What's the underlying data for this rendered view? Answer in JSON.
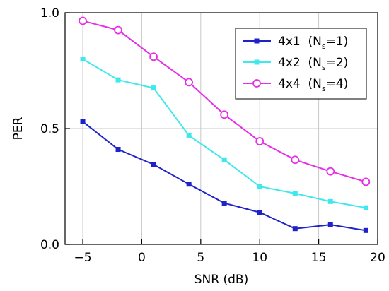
{
  "chart_data": {
    "type": "line",
    "xlabel": "SNR (dB)",
    "ylabel": "PER",
    "xlim": [
      -6.5,
      20
    ],
    "ylim": [
      0,
      1.0
    ],
    "x_ticks": [
      -5,
      0,
      5,
      10,
      15,
      20
    ],
    "x_tick_labels": [
      "−5",
      "0",
      "5",
      "10",
      "15",
      "20"
    ],
    "y_ticks": [
      0,
      0.5,
      1.0
    ],
    "y_tick_labels": [
      "0.0",
      "0.5",
      "1.0"
    ],
    "grid": true,
    "legend_position": "top-right",
    "x": [
      -5,
      -2,
      1,
      4,
      7,
      10,
      13,
      16,
      19
    ],
    "series": [
      {
        "name": "4x1 (Ns=1)",
        "label_main": "4x1  (N",
        "label_sub": "s",
        "label_tail": "=1)",
        "color": "#1d23c8",
        "marker": "square-filled",
        "values": [
          0.53,
          0.41,
          0.345,
          0.26,
          0.178,
          0.138,
          0.068,
          0.085,
          0.06
        ]
      },
      {
        "name": "4x2 (Ns=2)",
        "label_main": "4x2  (N",
        "label_sub": "s",
        "label_tail": "=2)",
        "color": "#3ee8ec",
        "marker": "square-filled",
        "values": [
          0.8,
          0.71,
          0.675,
          0.47,
          0.365,
          0.25,
          0.22,
          0.185,
          0.158
        ]
      },
      {
        "name": "4x4 (Ns=4)",
        "label_main": "4x4  (N",
        "label_sub": "s",
        "label_tail": "=4)",
        "color": "#e62ee6",
        "marker": "circle-open",
        "values": [
          0.965,
          0.925,
          0.81,
          0.7,
          0.56,
          0.445,
          0.365,
          0.315,
          0.27
        ]
      }
    ]
  }
}
